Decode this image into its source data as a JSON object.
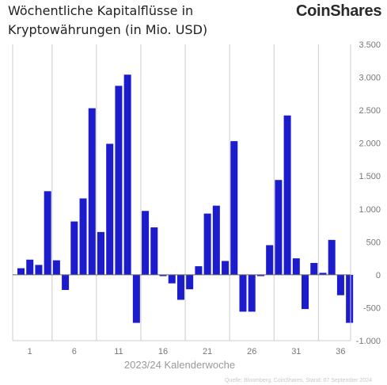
{
  "title": {
    "line1": "Wöchentliche Kapitalflüsse in",
    "line2": "Kryptowährungen (in Mio. USD)"
  },
  "brand": "CoinShares",
  "colors": {
    "bar": "#1c1ccc",
    "grid": "#cccccc",
    "axis": "#666666"
  },
  "chart_data": {
    "type": "bar",
    "title": "Wöchentliche Kapitalflüsse in Kryptowährungen (in Mio. USD)",
    "xlabel": "2023/24 Kalenderwoche",
    "ylabel": "",
    "ylim": [
      -1000,
      3500
    ],
    "yticks": [
      -1000,
      -500,
      0,
      500,
      1000,
      1500,
      2000,
      2500,
      3000,
      3500
    ],
    "ytick_labels": [
      "-1.000",
      "-500",
      "0",
      "500",
      "1.000",
      "1.500",
      "2.000",
      "2.500",
      "3.000",
      "3.500"
    ],
    "x_tick_labels": [
      "1",
      "6",
      "11",
      "16",
      "21",
      "26",
      "31",
      "36"
    ],
    "x_tick_positions": [
      2,
      7,
      12,
      17,
      22,
      27,
      32,
      37
    ],
    "grid": "vertical",
    "y_axis_position": "right",
    "source": "Quelle: Bloomberg, CoinShares, Stand: 07 September 2024",
    "values": [
      100,
      230,
      150,
      1270,
      220,
      -230,
      810,
      1160,
      2530,
      650,
      1990,
      2870,
      3040,
      -730,
      970,
      720,
      -20,
      -130,
      -380,
      -220,
      130,
      930,
      1050,
      210,
      2030,
      -560,
      -560,
      -20,
      450,
      1440,
      2420,
      250,
      -520,
      180,
      30,
      530,
      -310,
      -730
    ]
  }
}
